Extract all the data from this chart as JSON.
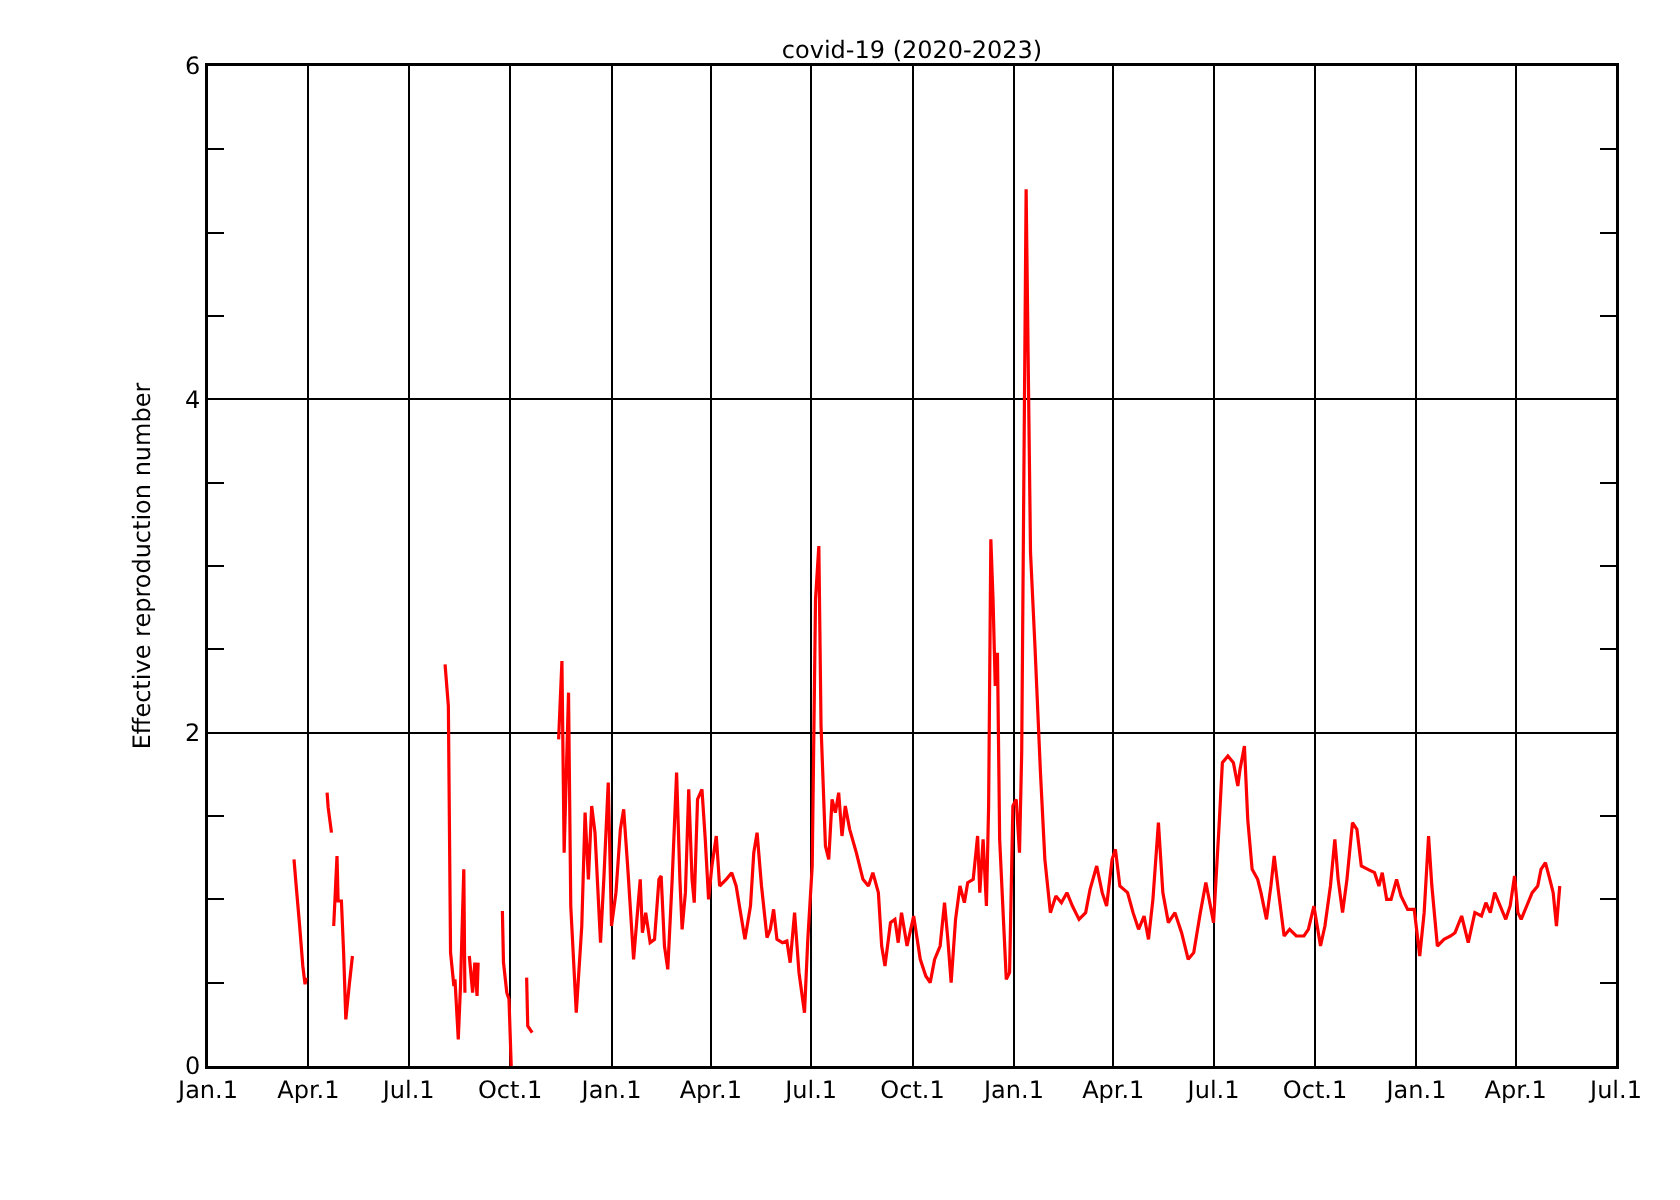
{
  "chart_data": {
    "type": "line",
    "title": "covid-19 (2020-2023)",
    "ylabel": "Effective reproduction number",
    "color": "#ff0000",
    "grid": true,
    "xlim": [
      "2020-01-01",
      "2023-07-01"
    ],
    "xticks": [
      {
        "value": "2020-01-01",
        "label": "Jan.1"
      },
      {
        "value": "2020-04-01",
        "label": "Apr.1"
      },
      {
        "value": "2020-07-01",
        "label": "Jul.1"
      },
      {
        "value": "2020-10-01",
        "label": "Oct.1"
      },
      {
        "value": "2021-01-01",
        "label": "Jan.1"
      },
      {
        "value": "2021-04-01",
        "label": "Apr.1"
      },
      {
        "value": "2021-07-01",
        "label": "Jul.1"
      },
      {
        "value": "2021-10-01",
        "label": "Oct.1"
      },
      {
        "value": "2022-01-01",
        "label": "Jan.1"
      },
      {
        "value": "2022-04-01",
        "label": "Apr.1"
      },
      {
        "value": "2022-07-01",
        "label": "Jul.1"
      },
      {
        "value": "2022-10-01",
        "label": "Oct.1"
      },
      {
        "value": "2023-01-01",
        "label": "Jan.1"
      },
      {
        "value": "2023-04-01",
        "label": "Apr.1"
      },
      {
        "value": "2023-07-01",
        "label": "Jul.1"
      }
    ],
    "ylim": [
      0,
      6
    ],
    "yticks": [
      0,
      {
        "value": 0.5,
        "label": null
      },
      {
        "value": 1,
        "label": null
      },
      {
        "value": 1.5,
        "label": null
      },
      2,
      {
        "value": 2.5,
        "label": null
      },
      {
        "value": 3,
        "label": null
      },
      {
        "value": 3.5,
        "label": null
      },
      4,
      {
        "value": 4.5,
        "label": null
      },
      {
        "value": 5,
        "label": null
      },
      {
        "value": 5.5,
        "label": null
      },
      6
    ],
    "x": [
      "2020-03-19",
      "2020-03-21",
      "2020-03-24",
      "2020-03-27",
      "2020-03-29",
      "2020-03-30",
      "2020-04-05",
      "2020-04-18",
      "2020-04-19",
      "2020-04-22",
      "2020-04-23",
      "2020-04-24",
      "2020-04-27",
      "2020-04-28",
      "2020-05-01",
      "2020-05-03",
      "2020-05-05",
      "2020-05-08",
      "2020-05-11",
      "2020-06-01",
      "2020-08-03",
      "2020-08-06",
      "2020-08-08",
      "2020-08-11",
      "2020-08-12",
      "2020-08-15",
      "2020-08-17",
      "2020-08-20",
      "2020-08-21",
      "2020-08-23",
      "2020-08-25",
      "2020-08-28",
      "2020-08-30",
      "2020-09-01",
      "2020-09-02",
      "2020-09-10",
      "2020-09-24",
      "2020-09-25",
      "2020-09-28",
      "2020-09-30",
      "2020-10-02",
      "2020-10-09",
      "2020-10-16",
      "2020-10-17",
      "2020-10-21",
      "2020-10-28",
      "2020-11-14",
      "2020-11-17",
      "2020-11-19",
      "2020-11-23",
      "2020-11-25",
      "2020-11-30",
      "2020-12-05",
      "2020-12-08",
      "2020-12-11",
      "2020-12-14",
      "2020-12-17",
      "2020-12-22",
      "2020-12-25",
      "2020-12-29",
      "2021-01-01",
      "2021-01-05",
      "2021-01-09",
      "2021-01-12",
      "2021-01-16",
      "2021-01-21",
      "2021-01-25",
      "2021-01-27",
      "2021-01-29",
      "2021-02-01",
      "2021-02-05",
      "2021-02-09",
      "2021-02-13",
      "2021-02-15",
      "2021-02-18",
      "2021-02-21",
      "2021-02-25",
      "2021-03-01",
      "2021-03-04",
      "2021-03-06",
      "2021-03-09",
      "2021-03-12",
      "2021-03-15",
      "2021-03-17",
      "2021-03-20",
      "2021-03-24",
      "2021-03-27",
      "2021-03-30",
      "2021-04-02",
      "2021-04-06",
      "2021-04-09",
      "2021-04-15",
      "2021-04-20",
      "2021-04-24",
      "2021-04-28",
      "2021-05-02",
      "2021-05-07",
      "2021-05-10",
      "2021-05-13",
      "2021-05-17",
      "2021-05-22",
      "2021-05-25",
      "2021-05-28",
      "2021-05-31",
      "2021-06-05",
      "2021-06-09",
      "2021-06-12",
      "2021-06-16",
      "2021-06-20",
      "2021-06-25",
      "2021-06-28",
      "2021-07-02",
      "2021-07-05",
      "2021-07-08",
      "2021-07-10",
      "2021-07-14",
      "2021-07-17",
      "2021-07-20",
      "2021-07-23",
      "2021-07-26",
      "2021-07-29",
      "2021-08-01",
      "2021-08-05",
      "2021-08-11",
      "2021-08-17",
      "2021-08-22",
      "2021-08-26",
      "2021-08-31",
      "2021-09-03",
      "2021-09-06",
      "2021-09-11",
      "2021-09-15",
      "2021-09-18",
      "2021-09-21",
      "2021-09-26",
      "2021-10-02",
      "2021-10-08",
      "2021-10-13",
      "2021-10-17",
      "2021-10-21",
      "2021-10-26",
      "2021-10-30",
      "2021-11-02",
      "2021-11-05",
      "2021-11-09",
      "2021-11-13",
      "2021-11-17",
      "2021-11-20",
      "2021-11-25",
      "2021-11-29",
      "2021-12-01",
      "2021-12-04",
      "2021-12-07",
      "2021-12-09",
      "2021-12-11",
      "2021-12-13",
      "2021-12-15",
      "2021-12-17",
      "2021-12-19",
      "2021-12-23",
      "2021-12-25",
      "2021-12-28",
      "2021-12-31",
      "2022-01-03",
      "2022-01-06",
      "2022-01-08",
      "2022-01-12",
      "2022-01-16",
      "2022-01-20",
      "2022-01-25",
      "2022-01-29",
      "2022-02-03",
      "2022-02-08",
      "2022-02-13",
      "2022-02-18",
      "2022-02-23",
      "2022-03-01",
      "2022-03-07",
      "2022-03-11",
      "2022-03-17",
      "2022-03-22",
      "2022-03-26",
      "2022-03-31",
      "2022-04-03",
      "2022-04-07",
      "2022-04-14",
      "2022-04-19",
      "2022-04-24",
      "2022-04-29",
      "2022-05-03",
      "2022-05-07",
      "2022-05-12",
      "2022-05-16",
      "2022-05-21",
      "2022-05-27",
      "2022-06-02",
      "2022-06-08",
      "2022-06-13",
      "2022-06-19",
      "2022-06-24",
      "2022-06-27",
      "2022-07-01",
      "2022-07-06",
      "2022-07-09",
      "2022-07-14",
      "2022-07-19",
      "2022-07-23",
      "2022-07-25",
      "2022-07-29",
      "2022-08-01",
      "2022-08-05",
      "2022-08-10",
      "2022-08-13",
      "2022-08-18",
      "2022-08-22",
      "2022-08-25",
      "2022-08-29",
      "2022-09-03",
      "2022-09-08",
      "2022-09-14",
      "2022-09-21",
      "2022-09-25",
      "2022-09-30",
      "2022-10-03",
      "2022-10-06",
      "2022-10-10",
      "2022-10-15",
      "2022-10-19",
      "2022-10-22",
      "2022-10-26",
      "2022-10-30",
      "2022-11-04",
      "2022-11-08",
      "2022-11-12",
      "2022-11-18",
      "2022-11-24",
      "2022-11-28",
      "2022-12-01",
      "2022-12-05",
      "2022-12-09",
      "2022-12-14",
      "2022-12-18",
      "2022-12-24",
      "2022-12-30",
      "2023-01-04",
      "2023-01-08",
      "2023-01-12",
      "2023-01-15",
      "2023-01-20",
      "2023-01-26",
      "2023-02-01",
      "2023-02-05",
      "2023-02-11",
      "2023-02-17",
      "2023-02-23",
      "2023-03-01",
      "2023-03-05",
      "2023-03-09",
      "2023-03-13",
      "2023-03-18",
      "2023-03-23",
      "2023-03-27",
      "2023-03-31",
      "2023-04-03",
      "2023-04-06",
      "2023-04-11",
      "2023-04-16",
      "2023-04-21",
      "2023-04-24",
      "2023-04-28",
      "2023-05-02",
      "2023-05-05",
      "2023-05-08",
      "2023-05-11"
    ],
    "values": [
      1.24,
      1.08,
      0.85,
      0.6,
      0.49,
      0.53,
      null,
      1.64,
      1.55,
      1.4,
      null,
      0.84,
      1.26,
      0.99,
      0.99,
      0.68,
      0.28,
      0.48,
      0.66,
      null,
      2.41,
      2.16,
      0.68,
      0.48,
      0.52,
      0.16,
      0.48,
      1.18,
      0.44,
      null,
      0.66,
      0.44,
      0.62,
      0.42,
      0.62,
      null,
      0.93,
      0.62,
      0.44,
      0.4,
      0,
      null,
      0.53,
      0.24,
      0.2,
      null,
      1.96,
      2.43,
      1.28,
      2.24,
      0.96,
      0.32,
      0.84,
      1.52,
      1.12,
      1.56,
      1.4,
      0.74,
      1.12,
      1.7,
      0.84,
      1.04,
      1.42,
      1.54,
      1.16,
      0.64,
      0.96,
      1.12,
      0.8,
      0.92,
      0.74,
      0.76,
      1.12,
      1.14,
      0.72,
      0.58,
      1.12,
      1.76,
      1.12,
      0.82,
      1.04,
      1.66,
      1.12,
      0.98,
      1.6,
      1.66,
      1.36,
      1.0,
      1.2,
      1.38,
      1.08,
      1.12,
      1.16,
      1.08,
      0.92,
      0.76,
      0.96,
      1.28,
      1.4,
      1.08,
      0.77,
      0.82,
      0.94,
      0.76,
      0.74,
      0.75,
      0.62,
      0.92,
      0.56,
      0.32,
      0.76,
      1.2,
      2.8,
      3.12,
      2.04,
      1.32,
      1.24,
      1.6,
      1.52,
      1.64,
      1.38,
      1.56,
      1.42,
      1.28,
      1.12,
      1.08,
      1.16,
      1.04,
      0.72,
      0.6,
      0.86,
      0.88,
      0.74,
      0.92,
      0.72,
      0.9,
      0.64,
      0.54,
      0.5,
      0.64,
      0.72,
      0.98,
      0.76,
      0.5,
      0.88,
      1.08,
      0.98,
      1.1,
      1.12,
      1.38,
      1.04,
      1.36,
      0.96,
      1.56,
      3.16,
      2.8,
      2.28,
      2.48,
      1.36,
      0.8,
      0.52,
      0.56,
      1.56,
      1.6,
      1.28,
      1.88,
      5.26,
      3.08,
      2.52,
      1.76,
      1.24,
      0.92,
      1.02,
      0.98,
      1.04,
      0.96,
      0.88,
      0.92,
      1.06,
      1.2,
      1.04,
      0.96,
      1.24,
      1.3,
      1.08,
      1.04,
      0.92,
      0.82,
      0.9,
      0.76,
      1.0,
      1.46,
      1.04,
      0.86,
      0.92,
      0.8,
      0.64,
      0.68,
      0.92,
      1.1,
      1.0,
      0.86,
      1.44,
      1.82,
      1.86,
      1.82,
      1.68,
      1.78,
      1.92,
      1.48,
      1.18,
      1.12,
      1.04,
      0.88,
      1.08,
      1.26,
      1.04,
      0.78,
      0.82,
      0.78,
      0.78,
      0.82,
      0.96,
      0.84,
      0.72,
      0.84,
      1.08,
      1.36,
      1.12,
      0.92,
      1.12,
      1.46,
      1.42,
      1.2,
      1.18,
      1.16,
      1.08,
      1.16,
      1.0,
      1.0,
      1.12,
      1.02,
      0.94,
      0.94,
      0.66,
      0.92,
      1.38,
      1.08,
      0.72,
      0.76,
      0.78,
      0.8,
      0.9,
      0.74,
      0.92,
      0.9,
      0.98,
      0.92,
      1.04,
      0.96,
      0.88,
      0.96,
      1.14,
      0.92,
      0.88,
      0.96,
      1.04,
      1.08,
      1.18,
      1.22,
      1.12,
      1.04,
      0.84,
      1.08
    ]
  }
}
